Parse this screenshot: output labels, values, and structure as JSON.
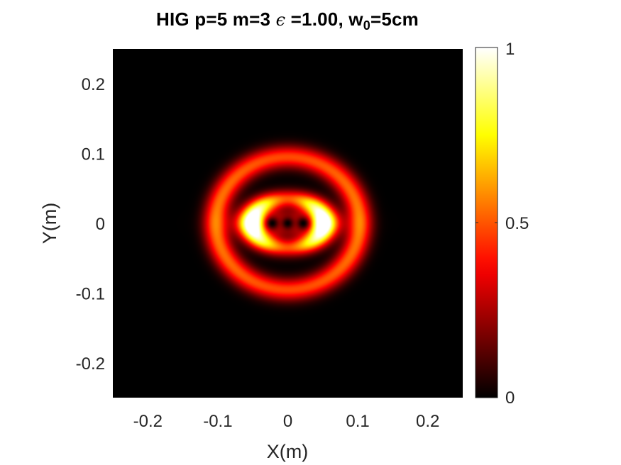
{
  "chart_data": {
    "type": "heatmap",
    "title": {
      "prefix": "HIG p=5 m=3 ",
      "epsilon_symbol": "ϵ",
      "epsilon_part": " =1.00, w",
      "subscript": "0",
      "suffix": "=5cm"
    },
    "xlabel": "X(m)",
    "ylabel": "Y(m)",
    "xlim": [
      -0.25,
      0.25
    ],
    "ylim": [
      -0.25,
      0.25
    ],
    "xticks": [
      -0.2,
      -0.1,
      0,
      0.1,
      0.2
    ],
    "xtick_labels": [
      "-0.2",
      "-0.1",
      "0",
      "0.1",
      "0.2"
    ],
    "yticks": [
      0.2,
      0.1,
      0,
      -0.1,
      -0.2
    ],
    "ytick_labels": [
      "0.2",
      "0.1",
      "0",
      "-0.1",
      "-0.2"
    ],
    "colorbar": {
      "colormap": "hot",
      "clim": [
        0,
        1
      ],
      "ticks": [
        0,
        0.5,
        1
      ],
      "tick_labels": [
        "0",
        "0.5",
        "1"
      ]
    },
    "intensity_pattern": {
      "parameters": {
        "p": 5,
        "m": 3,
        "epsilon": 1.0,
        "w0_cm": 5
      },
      "description": "Normalized intensity of a Helical Ince-Gaussian beam",
      "inner_ring_peak": 1.0,
      "outer_ring_peak": 0.55,
      "inner_ring_radius_m": {
        "x": 0.052,
        "y": 0.035
      },
      "outer_ring_radius_m": {
        "x": 0.103,
        "y": 0.095
      },
      "central_dark_spots_x_m": [
        -0.022,
        0,
        0.022
      ]
    }
  }
}
